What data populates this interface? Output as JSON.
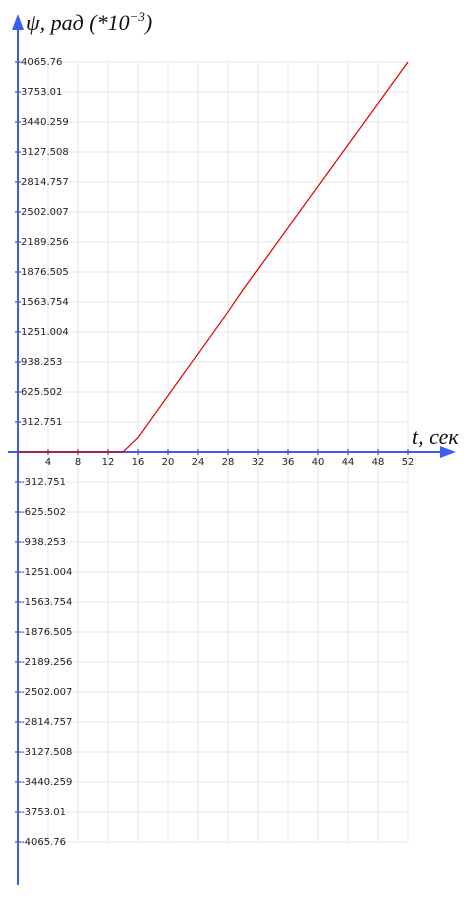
{
  "chart_data": {
    "type": "line",
    "y_label": "ψ, рад (*10",
    "y_label_exponent": "−3",
    "y_label_end": ")",
    "x_label": "t, сек",
    "x": [
      0,
      14,
      16,
      28,
      30,
      52
    ],
    "series": [
      {
        "color": "#dd0000",
        "values": [
          0,
          0,
          150,
          1460,
          1690,
          4065.76
        ]
      }
    ],
    "xlim": [
      0,
      52
    ],
    "xticks": [
      4,
      8,
      12,
      16,
      20,
      24,
      28,
      32,
      36,
      40,
      44,
      48,
      52
    ],
    "ylim": [
      -4065.76,
      4065.76
    ],
    "yticks": [
      4065.76,
      3753.01,
      3440.259,
      3127.508,
      2814.757,
      2502.007,
      2189.256,
      1876.505,
      1563.754,
      1251.004,
      938.253,
      625.502,
      312.751,
      -312.751,
      -625.502,
      -938.253,
      -1251.004,
      -1563.754,
      -1876.505,
      -2189.256,
      -2502.007,
      -2814.757,
      -3127.508,
      -3440.259,
      -3753.01,
      -4065.76
    ],
    "grid": true,
    "axis_color": "#3a5ef0"
  }
}
